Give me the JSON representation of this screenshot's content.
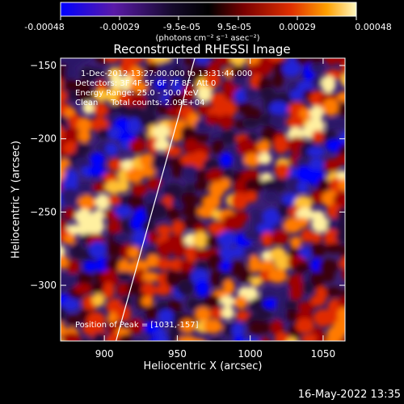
{
  "colorbar": {
    "tick_labels": [
      "-0.00048",
      "-0.00029",
      "-9.5e-05",
      "9.5e-05",
      "0.00029",
      "0.00048"
    ],
    "units_label": "(photons cm⁻² s⁻¹ asec⁻²)",
    "colors": [
      "#0000ff",
      "#5a1aa8",
      "#140a2a",
      "#000000",
      "#7a0000",
      "#e03000",
      "#ffa000",
      "#fff8c0"
    ]
  },
  "image": {
    "title": "Reconstructed RHESSI Image",
    "annotations": {
      "time_range": "1-Dec-2012 13:27:00.000 to 13:31:44.000",
      "detectors": "Detectors: 3F 4F 5F 6F 7F 8F, Att 0",
      "energy_range": "Energy Range: 25.0 - 50.0 keV",
      "algorithm_counts": "Clean     Total counts: 2.09E+04",
      "peak_position": "Position of Peak = [1031,-157]"
    },
    "x_axis": {
      "label": "Heliocentric X (arcsec)",
      "range": [
        870,
        1065
      ],
      "ticks": [
        900,
        950,
        1000,
        1050
      ],
      "tick_labels": [
        "900",
        "950",
        "1000",
        "1050"
      ]
    },
    "y_axis": {
      "label": "Heliocentric Y (arcsec)",
      "range": [
        -338,
        -145
      ],
      "ticks": [
        -150,
        -200,
        -250,
        -300
      ],
      "tick_labels": [
        "−150",
        "−200",
        "−250",
        "−300"
      ]
    },
    "limb_line": {
      "from": [
        908,
        -338
      ],
      "to": [
        962,
        -145
      ]
    }
  },
  "footer": {
    "timestamp": "16-May-2022 13:35"
  }
}
